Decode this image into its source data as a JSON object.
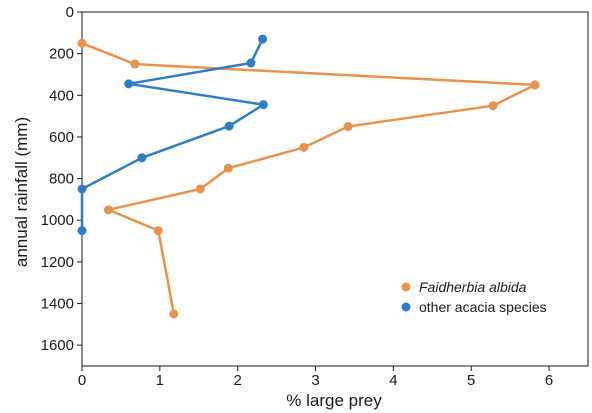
{
  "chart_data": {
    "type": "line",
    "title": "",
    "xlabel": "% large prey",
    "ylabel": "annual rainfall (mm)",
    "xlim": [
      0,
      6.5
    ],
    "ylim": [
      0,
      1700
    ],
    "y_inverted": true,
    "grid": false,
    "x_ticks": [
      0,
      1,
      2,
      3,
      4,
      5,
      6
    ],
    "y_ticks": [
      0,
      200,
      400,
      600,
      800,
      1000,
      1200,
      1400,
      1600
    ],
    "legend_position": "lower-right",
    "series": [
      {
        "name": "Faidherbia albida",
        "color": "#e8924f",
        "italic": true,
        "points": [
          {
            "x": 0.0,
            "y": 150
          },
          {
            "x": 0.68,
            "y": 250
          },
          {
            "x": 5.82,
            "y": 350
          },
          {
            "x": 5.28,
            "y": 450
          },
          {
            "x": 3.42,
            "y": 550
          },
          {
            "x": 2.85,
            "y": 650
          },
          {
            "x": 1.88,
            "y": 750
          },
          {
            "x": 1.52,
            "y": 850
          },
          {
            "x": 0.34,
            "y": 950
          },
          {
            "x": 0.98,
            "y": 1050
          },
          {
            "x": 1.18,
            "y": 1450
          }
        ]
      },
      {
        "name": "other acacia species",
        "color": "#2e7ec1",
        "italic": false,
        "points": [
          {
            "x": 2.32,
            "y": 130
          },
          {
            "x": 2.17,
            "y": 245
          },
          {
            "x": 0.6,
            "y": 345
          },
          {
            "x": 2.33,
            "y": 445
          },
          {
            "x": 1.89,
            "y": 548
          },
          {
            "x": 0.77,
            "y": 700
          },
          {
            "x": 0.0,
            "y": 850
          },
          {
            "x": 0.0,
            "y": 1050
          }
        ]
      }
    ]
  }
}
